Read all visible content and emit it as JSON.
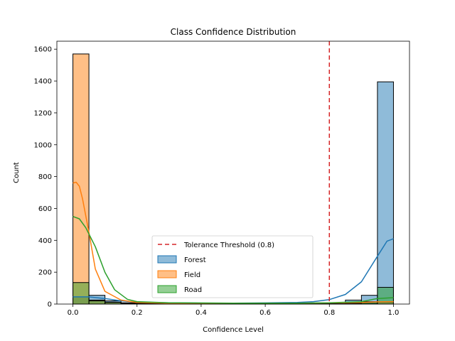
{
  "chart_data": {
    "type": "histogram",
    "title": "Class Confidence Distribution",
    "xlabel": "Confidence Level",
    "ylabel": "Count",
    "xlim": [
      -0.05,
      1.05
    ],
    "ylim": [
      0,
      1650
    ],
    "x_ticks": [
      "0.0",
      "0.2",
      "0.4",
      "0.6",
      "0.8",
      "1.0"
    ],
    "y_ticks": [
      "0",
      "200",
      "400",
      "600",
      "800",
      "1000",
      "1200",
      "1400",
      "1600"
    ],
    "bin_edges": [
      0.0,
      0.05,
      0.1,
      0.15,
      0.2,
      0.25,
      0.3,
      0.35,
      0.4,
      0.45,
      0.5,
      0.55,
      0.6,
      0.65,
      0.7,
      0.75,
      0.8,
      0.85,
      0.9,
      0.95,
      1.0
    ],
    "threshold": {
      "x": 0.8,
      "label": "Tolerance Threshold (0.8)",
      "color": "#d62728"
    },
    "series": [
      {
        "name": "Forest",
        "color": "#1f77b4",
        "counts": [
          45,
          55,
          20,
          8,
          5,
          3,
          3,
          3,
          2,
          2,
          2,
          2,
          2,
          2,
          3,
          3,
          3,
          25,
          55,
          1395
        ],
        "kde": [
          [
            0.0,
            45
          ],
          [
            0.05,
            45
          ],
          [
            0.1,
            35
          ],
          [
            0.15,
            20
          ],
          [
            0.2,
            12
          ],
          [
            0.3,
            8
          ],
          [
            0.4,
            6
          ],
          [
            0.5,
            6
          ],
          [
            0.6,
            7
          ],
          [
            0.7,
            10
          ],
          [
            0.75,
            15
          ],
          [
            0.8,
            28
          ],
          [
            0.85,
            60
          ],
          [
            0.9,
            140
          ],
          [
            0.95,
            300
          ],
          [
            0.98,
            395
          ],
          [
            1.0,
            410
          ]
        ]
      },
      {
        "name": "Field",
        "color": "#ff7f0e",
        "counts": [
          1570,
          25,
          12,
          5,
          3,
          2,
          2,
          2,
          2,
          2,
          2,
          2,
          2,
          2,
          2,
          2,
          2,
          2,
          5,
          12
        ],
        "kde": [
          [
            0.0,
            760
          ],
          [
            0.01,
            765
          ],
          [
            0.02,
            740
          ],
          [
            0.03,
            660
          ],
          [
            0.05,
            450
          ],
          [
            0.07,
            220
          ],
          [
            0.1,
            80
          ],
          [
            0.15,
            25
          ],
          [
            0.2,
            10
          ],
          [
            0.3,
            5
          ],
          [
            0.5,
            5
          ],
          [
            0.7,
            6
          ],
          [
            0.8,
            7
          ],
          [
            0.9,
            10
          ],
          [
            0.95,
            14
          ],
          [
            1.0,
            15
          ]
        ]
      },
      {
        "name": "Road",
        "color": "#2ca02c",
        "counts": [
          135,
          20,
          10,
          5,
          3,
          2,
          2,
          2,
          2,
          2,
          2,
          2,
          2,
          2,
          2,
          2,
          2,
          5,
          15,
          105
        ],
        "kde": [
          [
            0.0,
            550
          ],
          [
            0.02,
            535
          ],
          [
            0.04,
            480
          ],
          [
            0.07,
            360
          ],
          [
            0.1,
            200
          ],
          [
            0.13,
            90
          ],
          [
            0.17,
            30
          ],
          [
            0.2,
            15
          ],
          [
            0.3,
            8
          ],
          [
            0.5,
            6
          ],
          [
            0.7,
            6
          ],
          [
            0.8,
            8
          ],
          [
            0.9,
            15
          ],
          [
            0.95,
            35
          ],
          [
            1.0,
            40
          ]
        ]
      }
    ]
  }
}
